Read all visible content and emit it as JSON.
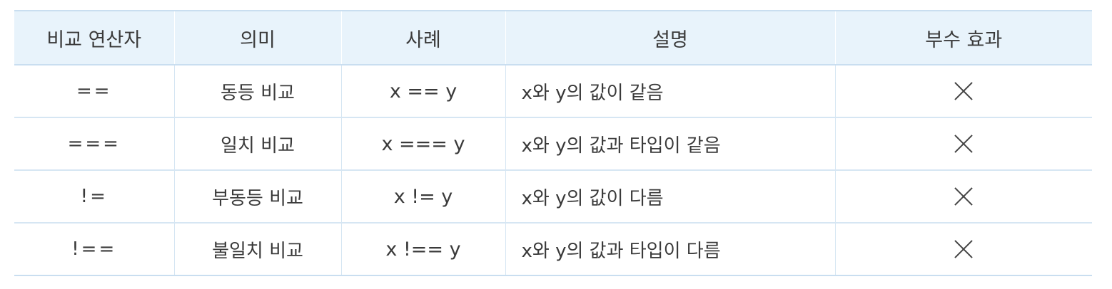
{
  "table": {
    "headers": [
      "비교 연산자",
      "의미",
      "사례",
      "설명",
      "부수 효과"
    ],
    "rows": [
      {
        "operator": "==",
        "meaning": "동등 비교",
        "example": "x == y",
        "description": "x와 y의 값이 같음",
        "side_effect": "✕"
      },
      {
        "operator": "===",
        "meaning": "일치 비교",
        "example": "x === y",
        "description": "x와 y의 값과 타입이 같음",
        "side_effect": "✕"
      },
      {
        "operator": "!=",
        "meaning": "부동등 비교",
        "example": "x != y",
        "description": "x와 y의 값이 다름",
        "side_effect": "✕"
      },
      {
        "operator": "!==",
        "meaning": "불일치 비교",
        "example": "x !== y",
        "description": "x와 y의 값과 타입이 다름",
        "side_effect": "✕"
      }
    ]
  },
  "icons": {
    "side_effect_mark": "x-mark-icon"
  },
  "colors": {
    "header_bg": "#e8f3fb",
    "border": "#d6e6f3",
    "text": "#3a3a3a"
  }
}
